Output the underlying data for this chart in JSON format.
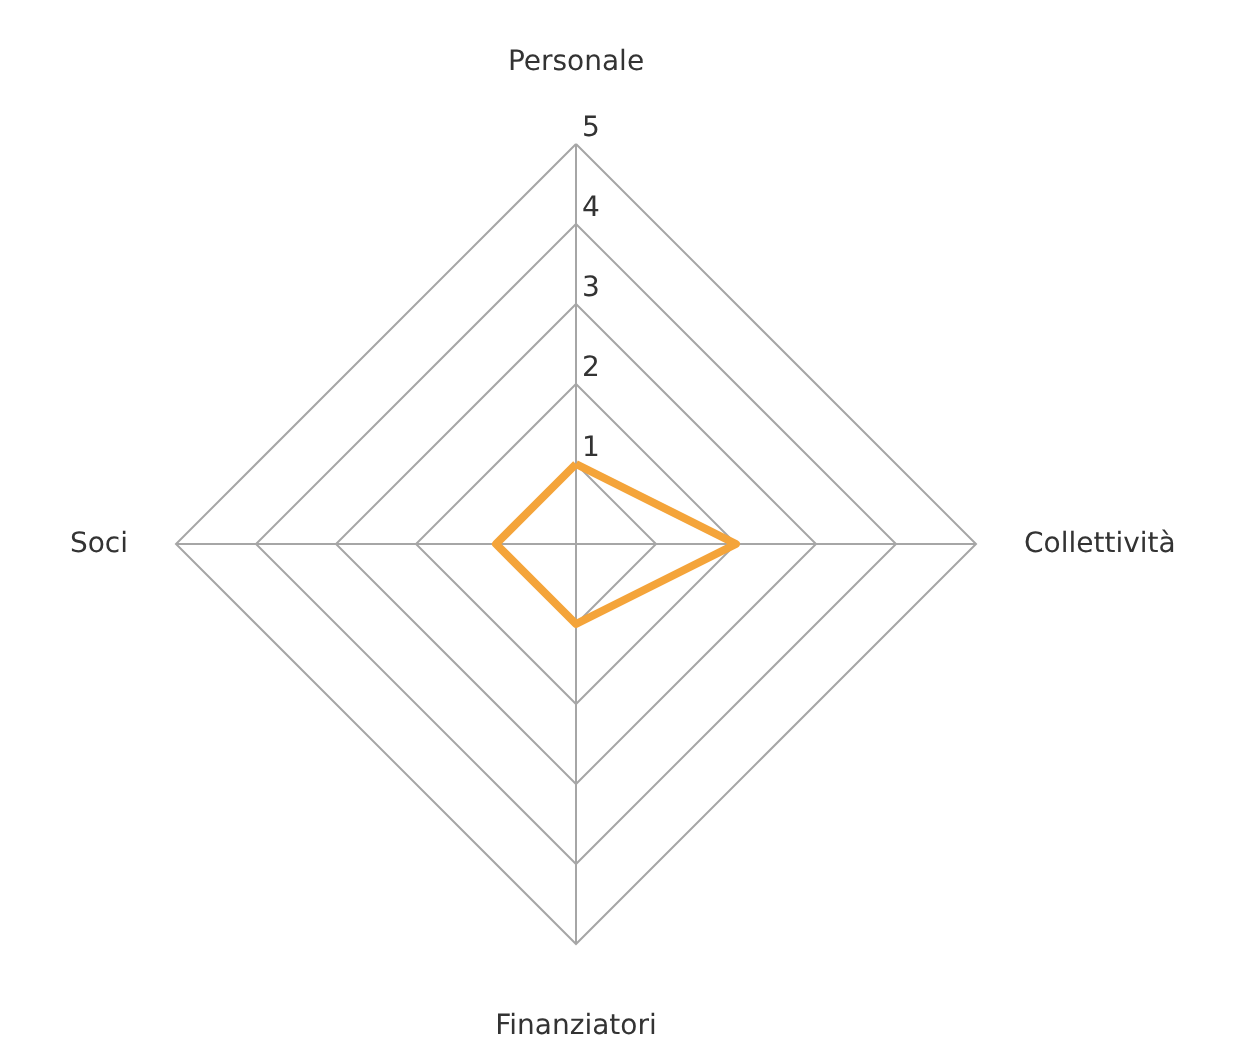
{
  "chart_data": {
    "type": "radar",
    "categories": [
      "Personale",
      "Collettività",
      "Finanziatori",
      "Soci"
    ],
    "series": [
      {
        "color": "#f4a43a",
        "values": [
          1,
          2,
          1,
          1
        ]
      }
    ],
    "ylim": [
      0,
      5
    ],
    "yticks": [
      1,
      2,
      3,
      4,
      5
    ],
    "grid": true,
    "marker": "none",
    "line_style": "solid"
  }
}
